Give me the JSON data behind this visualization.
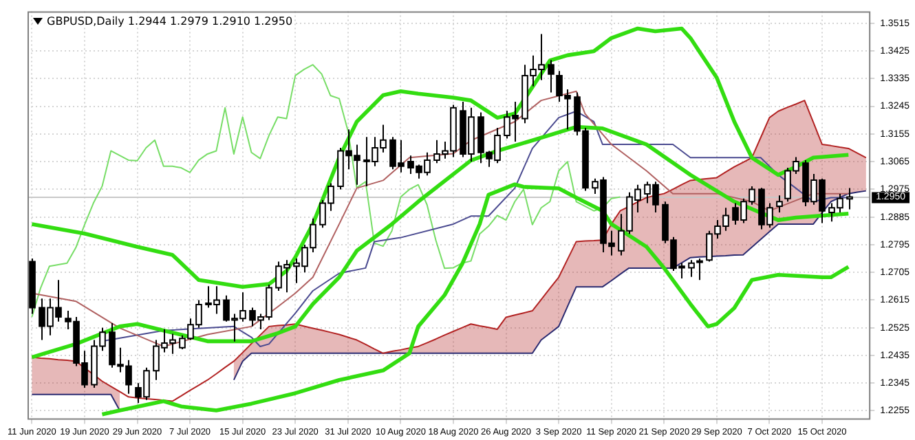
{
  "chart_data": {
    "type": "candlestick",
    "title": "GBPUSD,Daily 1.2944 1.2979 1.2910 1.2950",
    "categories": [
      "11 Jun 2020",
      null,
      null,
      null,
      null,
      null,
      "19 Jun 2020",
      null,
      null,
      null,
      null,
      null,
      "29 Jun 2020",
      null,
      null,
      null,
      null,
      null,
      "7 Jul 2020",
      null,
      null,
      null,
      null,
      null,
      "15 Jul 2020",
      null,
      null,
      null,
      null,
      null,
      "23 Jul 2020",
      null,
      null,
      null,
      null,
      null,
      "31 Jul 2020",
      null,
      null,
      null,
      null,
      null,
      "10 Aug 2020",
      null,
      null,
      null,
      null,
      null,
      "18 Aug 2020",
      null,
      null,
      null,
      null,
      null,
      "26 Aug 2020",
      null,
      null,
      null,
      null,
      null,
      "3 Sep 2020",
      null,
      null,
      null,
      null,
      null,
      "11 Sep 2020",
      null,
      null,
      null,
      null,
      null,
      "21 Sep 2020",
      null,
      null,
      null,
      null,
      null,
      "29 Sep 2020",
      null,
      null,
      null,
      null,
      null,
      "7 Oct 2020",
      null,
      null,
      null,
      null,
      null,
      "15 Oct 2020",
      null,
      null,
      null,
      null,
      null
    ],
    "ohlc": [
      [
        1.274,
        1.275,
        1.257,
        1.259
      ],
      [
        1.259,
        1.262,
        1.2485,
        1.253
      ],
      [
        1.253,
        1.262,
        1.25,
        1.259
      ],
      [
        1.259,
        1.268,
        1.2545,
        1.256
      ],
      [
        1.2555,
        1.258,
        1.252,
        1.2545
      ],
      [
        1.2545,
        1.256,
        1.24,
        1.241
      ],
      [
        1.241,
        1.245,
        1.233,
        1.234
      ],
      [
        1.234,
        1.2485,
        1.233,
        1.2465
      ],
      [
        1.2465,
        1.2525,
        1.245,
        1.251
      ],
      [
        1.251,
        1.254,
        1.2395,
        1.2405
      ],
      [
        1.2405,
        1.246,
        1.238,
        1.24
      ],
      [
        1.24,
        1.242,
        1.231,
        1.234
      ],
      [
        1.233,
        1.2345,
        1.228,
        1.23
      ],
      [
        1.23,
        1.2395,
        1.229,
        1.2385
      ],
      [
        1.2385,
        1.2485,
        1.2355,
        1.2465
      ],
      [
        1.246,
        1.252,
        1.2445,
        1.2475
      ],
      [
        1.2475,
        1.2505,
        1.244,
        1.2485
      ],
      [
        1.246,
        1.25,
        1.2455,
        1.249
      ],
      [
        1.249,
        1.2555,
        1.2485,
        1.2535
      ],
      [
        1.2535,
        1.2615,
        1.2525,
        1.26
      ],
      [
        1.26,
        1.266,
        1.259,
        1.2605
      ],
      [
        1.26,
        1.266,
        1.257,
        1.2615
      ],
      [
        1.2615,
        1.263,
        1.2545,
        1.255
      ],
      [
        1.255,
        1.257,
        1.248,
        1.2555
      ],
      [
        1.2555,
        1.264,
        1.2545,
        1.258
      ],
      [
        1.258,
        1.259,
        1.253,
        1.255
      ],
      [
        1.255,
        1.257,
        1.252,
        1.256
      ],
      [
        1.256,
        1.2665,
        1.255,
        1.2655
      ],
      [
        1.2655,
        1.274,
        1.2645,
        1.2725
      ],
      [
        1.272,
        1.2745,
        1.264,
        1.273
      ],
      [
        1.2725,
        1.275,
        1.267,
        1.2735
      ],
      [
        1.2725,
        1.2795,
        1.2705,
        1.2785
      ],
      [
        1.2785,
        1.288,
        1.277,
        1.286
      ],
      [
        1.286,
        1.294,
        1.285,
        1.293
      ],
      [
        1.293,
        1.2995,
        1.2905,
        1.2985
      ],
      [
        1.2985,
        1.311,
        1.2975,
        1.31
      ],
      [
        1.31,
        1.317,
        1.304,
        1.3085
      ],
      [
        1.3085,
        1.312,
        1.299,
        1.307
      ],
      [
        1.307,
        1.3145,
        1.2985,
        1.3068
      ],
      [
        1.3065,
        1.3145,
        1.305,
        1.311
      ],
      [
        1.311,
        1.3185,
        1.3095,
        1.3135
      ],
      [
        1.3135,
        1.3145,
        1.304,
        1.305
      ],
      [
        1.306,
        1.3135,
        1.303,
        1.305
      ],
      [
        1.3065,
        1.3085,
        1.3025,
        1.3045
      ],
      [
        1.305,
        1.3055,
        1.301,
        1.303
      ],
      [
        1.303,
        1.3095,
        1.302,
        1.307
      ],
      [
        1.307,
        1.3135,
        1.306,
        1.309
      ],
      [
        1.309,
        1.313,
        1.3075,
        1.31
      ],
      [
        1.31,
        1.325,
        1.308,
        1.324
      ],
      [
        1.323,
        1.326,
        1.308,
        1.309
      ],
      [
        1.309,
        1.324,
        1.3065,
        1.321
      ],
      [
        1.321,
        1.3225,
        1.306,
        1.3095
      ],
      [
        1.3095,
        1.31,
        1.3048,
        1.3075
      ],
      [
        1.307,
        1.3175,
        1.306,
        1.315
      ],
      [
        1.315,
        1.323,
        1.314,
        1.321
      ],
      [
        1.3215,
        1.326,
        1.313,
        1.3205
      ],
      [
        1.3205,
        1.338,
        1.319,
        1.3345
      ],
      [
        1.3345,
        1.341,
        1.331,
        1.3365
      ],
      [
        1.3365,
        1.348,
        1.333,
        1.338
      ],
      [
        1.338,
        1.3395,
        1.329,
        1.335
      ],
      [
        1.3345,
        1.336,
        1.326,
        1.328
      ],
      [
        1.328,
        1.33,
        1.317,
        1.327
      ],
      [
        1.3275,
        1.329,
        1.315,
        1.3165
      ],
      [
        1.3165,
        1.3175,
        1.297,
        1.298
      ],
      [
        1.298,
        1.301,
        1.296,
        1.3
      ],
      [
        1.3005,
        1.3015,
        1.277,
        1.28
      ],
      [
        1.28,
        1.284,
        1.276,
        1.279
      ],
      [
        1.2775,
        1.2895,
        1.276,
        1.284
      ],
      [
        1.284,
        1.2965,
        1.283,
        1.295
      ],
      [
        1.294,
        1.299,
        1.29,
        1.2975
      ],
      [
        1.296,
        1.3,
        1.293,
        1.299
      ],
      [
        1.299,
        1.3,
        1.29,
        1.2925
      ],
      [
        1.2925,
        1.2935,
        1.28,
        1.281
      ],
      [
        1.281,
        1.282,
        1.271,
        1.2718
      ],
      [
        1.2725,
        1.2735,
        1.2685,
        1.272
      ],
      [
        1.272,
        1.2745,
        1.269,
        1.2735
      ],
      [
        1.274,
        1.275,
        1.268,
        1.2742
      ],
      [
        1.2745,
        1.284,
        1.274,
        1.283
      ],
      [
        1.283,
        1.2875,
        1.2815,
        1.2855
      ],
      [
        1.2855,
        1.2915,
        1.284,
        1.289
      ],
      [
        1.2915,
        1.293,
        1.286,
        1.2875
      ],
      [
        1.2875,
        1.2945,
        1.2865,
        1.2935
      ],
      [
        1.2935,
        1.2985,
        1.2925,
        1.2975
      ],
      [
        1.2975,
        1.298,
        1.2845,
        1.286
      ],
      [
        1.286,
        1.293,
        1.285,
        1.2915
      ],
      [
        1.292,
        1.2955,
        1.29,
        1.2935
      ],
      [
        1.2945,
        1.3045,
        1.2935,
        1.3035
      ],
      [
        1.3035,
        1.308,
        1.3025,
        1.3065
      ],
      [
        1.306,
        1.307,
        1.292,
        1.2935
      ],
      [
        1.2935,
        1.3025,
        1.2925,
        1.3005
      ],
      [
        1.3005,
        1.301,
        1.2865,
        1.2905
      ],
      [
        1.29,
        1.293,
        1.287,
        1.2915
      ],
      [
        1.2915,
        1.296,
        1.29,
        1.2945
      ],
      [
        1.2944,
        1.2979,
        1.291,
        1.295
      ],
      null,
      null
    ],
    "series": [
      {
        "type": "line",
        "color": "#33dd11",
        "values": [
          1.2862,
          null,
          null,
          null,
          null,
          null,
          1.2831,
          null,
          null,
          null,
          null,
          null,
          1.2788,
          null,
          null,
          null,
          1.2762,
          null,
          null,
          1.268,
          null,
          null,
          null,
          null,
          1.2658,
          null,
          null,
          1.2667,
          null,
          1.271,
          1.2754,
          null,
          1.2862,
          null,
          null,
          1.3078,
          null,
          1.3195,
          null,
          null,
          1.3281,
          null,
          1.3294,
          null,
          1.3286,
          null,
          null,
          null,
          1.3273,
          null,
          1.3264,
          null,
          null,
          1.3208,
          null,
          1.3221,
          1.3264,
          null,
          null,
          1.3394,
          null,
          1.3411,
          null,
          null,
          1.3424,
          null,
          1.3467,
          null,
          null,
          1.3498,
          null,
          1.3489,
          null,
          null,
          1.3498,
          1.3467,
          null,
          null,
          1.3338,
          null,
          1.3195,
          null,
          1.3078,
          null,
          null,
          1.3022,
          null,
          1.3048,
          null,
          1.3078,
          null,
          null,
          null,
          1.3087,
          null,
          null
        ]
      },
      {
        "type": "line",
        "color": "#33dd11",
        "values": [
          1.2429,
          null,
          null,
          null,
          null,
          1.2472,
          null,
          null,
          null,
          null,
          1.2529,
          null,
          1.2537,
          null,
          null,
          1.2516,
          null,
          null,
          null,
          null,
          1.2481,
          null,
          null,
          null,
          null,
          1.2481,
          null,
          null,
          1.2507,
          null,
          1.2529,
          null,
          1.2602,
          null,
          null,
          1.2689,
          null,
          1.2775,
          null,
          null,
          null,
          1.2862,
          null,
          null,
          1.2935,
          null,
          null,
          null,
          null,
          null,
          1.3069,
          null,
          null,
          1.31,
          null,
          null,
          null,
          1.3134,
          null,
          null,
          null,
          null,
          1.3178,
          null,
          null,
          1.3173,
          null,
          null,
          null,
          null,
          1.3121,
          null,
          null,
          null,
          null,
          1.3022,
          null,
          null,
          null,
          null,
          1.2935,
          null,
          null,
          null,
          null,
          1.2875,
          null,
          1.2883,
          null,
          null,
          null,
          null,
          null,
          1.2896,
          null,
          null
        ]
      },
      {
        "type": "line",
        "color": "#33dd11",
        "values": [
          null,
          null,
          null,
          null,
          null,
          null,
          null,
          null,
          1.2243,
          null,
          1.2256,
          null,
          null,
          null,
          null,
          1.2286,
          null,
          1.2269,
          null,
          null,
          null,
          1.2256,
          null,
          null,
          null,
          1.2278,
          null,
          null,
          null,
          null,
          1.2312,
          null,
          null,
          null,
          null,
          1.2355,
          null,
          null,
          null,
          null,
          1.2386,
          null,
          null,
          1.2442,
          1.2529,
          null,
          null,
          1.2631,
          null,
          1.2732,
          null,
          1.2862,
          1.2957,
          null,
          null,
          1.2991,
          1.2983,
          null,
          null,
          null,
          1.2978,
          null,
          1.2948,
          null,
          null,
          1.2905,
          1.2862,
          null,
          null,
          null,
          1.2788,
          null,
          1.2719,
          null,
          null,
          1.2602,
          null,
          1.2529,
          1.2537,
          null,
          1.2589,
          null,
          1.268,
          null,
          null,
          1.2697,
          null,
          null,
          null,
          null,
          1.2689,
          1.2689,
          null,
          1.2723,
          null,
          null
        ]
      },
      {
        "type": "line",
        "color": "#b06060",
        "values": [
          1.2637,
          null,
          null,
          null,
          null,
          1.2611,
          null,
          null,
          null,
          null,
          1.2524,
          null,
          null,
          null,
          null,
          1.2464,
          null,
          null,
          null,
          null,
          1.2503,
          null,
          null,
          null,
          null,
          1.2529,
          null,
          null,
          1.2593,
          null,
          1.2637,
          null,
          1.2689,
          null,
          null,
          1.2862,
          null,
          1.2979,
          null,
          null,
          1.3004,
          null,
          null,
          1.3078,
          null,
          null,
          null,
          null,
          1.3091,
          null,
          1.3134,
          null,
          null,
          null,
          null,
          1.3195,
          null,
          null,
          1.3264,
          null,
          null,
          null,
          1.3294,
          1.3221,
          null,
          null,
          1.3121,
          null,
          null,
          null,
          1.3035,
          null,
          null,
          1.2961,
          null,
          null,
          null,
          null,
          1.2961,
          null,
          null,
          null,
          1.2935,
          null,
          1.2905,
          null,
          null,
          null,
          null,
          1.2961,
          null,
          null,
          null,
          1.2961,
          null,
          null
        ]
      },
      {
        "type": "line",
        "color": "#4a4a90",
        "values": [
          null,
          null,
          null,
          null,
          null,
          null,
          null,
          null,
          1.2481,
          null,
          null,
          null,
          null,
          null,
          null,
          1.2516,
          null,
          null,
          null,
          null,
          null,
          null,
          null,
          1.2529,
          null,
          1.2494,
          1.2464,
          1.2472,
          null,
          null,
          1.2572,
          null,
          1.2645,
          null,
          null,
          1.2702,
          null,
          null,
          1.2719,
          1.2805,
          null,
          null,
          1.2818,
          null,
          null,
          null,
          null,
          null,
          1.2862,
          null,
          1.2888,
          null,
          1.2888,
          null,
          null,
          1.2979,
          null,
          1.3108,
          null,
          null,
          1.3208,
          null,
          1.3229,
          null,
          1.3195,
          1.3121,
          null,
          null,
          null,
          null,
          null,
          null,
          null,
          1.3121,
          null,
          1.3078,
          null,
          null,
          null,
          null,
          null,
          null,
          null,
          1.3078,
          null,
          1.3022,
          null,
          1.2979,
          null,
          1.2935,
          null,
          1.2948,
          null,
          1.2948,
          null,
          null
        ]
      },
      {
        "type": "line",
        "color": "#77dd66",
        "values": [
          1.256,
          1.2655,
          1.2725,
          1.273,
          1.2735,
          1.2785,
          1.286,
          1.293,
          1.2985,
          1.31,
          1.3085,
          1.307,
          1.3068,
          1.311,
          1.3135,
          1.305,
          1.305,
          1.3045,
          1.303,
          1.307,
          1.309,
          1.31,
          1.324,
          1.309,
          1.321,
          1.3095,
          1.3075,
          1.315,
          1.321,
          1.3205,
          1.3345,
          1.3365,
          1.338,
          1.335,
          1.328,
          1.327,
          1.3165,
          1.298,
          1.3,
          1.28,
          1.279,
          1.284,
          1.295,
          1.2975,
          1.299,
          1.2925,
          1.281,
          1.2718,
          1.272,
          1.2735,
          1.2742,
          1.283,
          1.2855,
          1.289,
          1.2875,
          1.2935,
          1.2975,
          1.286,
          1.2915,
          1.2935,
          1.3035,
          1.3065,
          1.2935,
          null,
          1.2905,
          1.2915,
          1.2945,
          1.295,
          null,
          null,
          null,
          null,
          null,
          null,
          null,
          null,
          null,
          null,
          null,
          null,
          null,
          null,
          null,
          null,
          null,
          null,
          null,
          null,
          null,
          null,
          null,
          null,
          null,
          null,
          null,
          null
        ]
      },
      {
        "type": "line",
        "color": "#b22222",
        "values": [
          1.2429,
          1.2426,
          1.2424,
          1.2421,
          1.2419,
          1.2416,
          1.2394,
          1.2373,
          1.2351,
          1.2334,
          1.2317,
          1.23,
          1.2297,
          1.2294,
          1.2292,
          1.2289,
          1.2286,
          1.2303,
          1.2321,
          1.2338,
          1.2355,
          1.2375,
          1.2396,
          1.2416,
          1.2444,
          1.2473,
          1.2501,
          1.2529,
          1.2532,
          1.2534,
          1.2537,
          1.253,
          1.2523,
          1.2517,
          1.251,
          1.2503,
          1.2494,
          1.2485,
          1.2471,
          1.2456,
          1.2442,
          1.2448,
          1.2453,
          1.2459,
          1.2464,
          1.2476,
          1.2488,
          1.2501,
          1.2513,
          1.2525,
          1.2537,
          1.2531,
          1.2526,
          1.252,
          1.2559,
          1.2566,
          1.2573,
          1.258,
          1.2616,
          1.2653,
          1.2689,
          1.2747,
          1.2805,
          1.2807,
          1.2808,
          1.281,
          1.2862,
          1.2905,
          1.2919,
          1.2934,
          1.2948,
          1.2955,
          1.2961,
          1.2975,
          1.299,
          1.3004,
          1.3007,
          1.301,
          1.3013,
          1.3031,
          1.3048,
          1.3063,
          1.3078,
          1.3143,
          1.3208,
          1.3229,
          1.3241,
          1.3252,
          1.3264,
          1.3193,
          1.3121,
          1.3117,
          1.3112,
          1.3108,
          1.3093,
          1.3078
        ],
        "upper": [
          1.2429,
          1.2426,
          1.2424,
          1.2421,
          1.2419,
          1.2416,
          1.2394,
          1.2373,
          1.2351,
          1.2334,
          1.2317,
          null,
          null,
          null,
          null,
          null,
          null,
          null,
          null,
          null,
          null,
          null,
          null,
          1.2416,
          1.2444,
          1.2473,
          1.2501,
          1.2529,
          1.2532,
          1.2534,
          1.2537,
          1.253,
          1.2523,
          1.2517,
          1.251,
          1.2503,
          1.2494,
          1.2485,
          1.2471,
          1.2456,
          1.2442,
          1.2448,
          1.2453,
          1.2459,
          1.2464,
          1.2476,
          1.2488,
          1.2501,
          1.2513,
          1.2525,
          1.2537,
          1.2531,
          1.2526,
          1.252,
          1.2559,
          1.2566,
          1.2573,
          1.258,
          1.2616,
          1.2653,
          1.2689,
          1.2747,
          1.2805,
          1.2807,
          1.2808,
          1.281,
          1.2862,
          1.2905,
          1.2919,
          1.2934,
          1.2948,
          1.2955,
          1.2961,
          1.2975,
          1.299,
          1.3004,
          1.3007,
          1.301,
          1.3013,
          1.3031,
          1.3048,
          1.3063,
          1.3078,
          1.3143,
          1.3208,
          1.3229,
          1.3241,
          1.3252,
          1.3264,
          1.3193,
          1.3121,
          1.3117,
          1.3112,
          1.3108,
          1.3093,
          1.3078
        ],
        "lower": [
          1.2308,
          1.2308,
          1.2308,
          1.2308,
          1.2308,
          1.2308,
          1.2308,
          1.2308,
          1.2308,
          1.2308,
          1.2256,
          null,
          null,
          null,
          null,
          null,
          null,
          null,
          null,
          null,
          null,
          null,
          null,
          1.2355,
          1.2416,
          1.2442,
          1.2442,
          1.2442,
          1.2442,
          1.2442,
          1.2442,
          1.2442,
          1.2442,
          1.2442,
          1.2442,
          1.2442,
          1.2442,
          1.2442,
          1.2442,
          1.2442,
          1.2442,
          1.2442,
          1.2442,
          1.2442,
          1.2442,
          1.2442,
          1.2442,
          1.2442,
          1.2442,
          1.2442,
          1.2442,
          1.2442,
          1.2442,
          1.2442,
          1.2442,
          1.2442,
          1.2442,
          1.2442,
          1.2485,
          1.2507,
          1.2529,
          1.2594,
          1.2658,
          1.2658,
          1.2658,
          1.2658,
          1.2678,
          1.2699,
          1.2719,
          1.2719,
          1.2719,
          1.2719,
          1.2719,
          1.2719,
          1.2736,
          1.2753,
          1.2755,
          1.2756,
          1.2758,
          1.2759,
          1.2761,
          1.2762,
          1.2787,
          1.2812,
          1.2837,
          1.2862,
          1.2862,
          1.2862,
          1.2862,
          1.2862,
          1.2899,
          1.2935,
          1.2948,
          1.2961,
          1.2966,
          1.297
        ]
      },
      {
        "type": "line",
        "color": "#2a2a70",
        "values": [
          1.2308,
          1.2308,
          1.2308,
          1.2308,
          1.2308,
          1.2308,
          1.2308,
          1.2308,
          1.2308,
          1.2308,
          1.2256,
          null,
          null,
          null,
          null,
          null,
          null,
          null,
          null,
          null,
          null,
          null,
          null,
          1.2355,
          1.2416,
          1.2442,
          1.2442,
          1.2442,
          1.2442,
          1.2442,
          1.2442,
          1.2442,
          1.2442,
          1.2442,
          1.2442,
          1.2442,
          1.2442,
          1.2442,
          1.2442,
          1.2442,
          1.2442,
          1.2442,
          1.2442,
          1.2442,
          1.2442,
          1.2442,
          1.2442,
          1.2442,
          1.2442,
          1.2442,
          1.2442,
          1.2442,
          1.2442,
          1.2442,
          1.2442,
          1.2442,
          1.2442,
          1.2442,
          1.2485,
          1.2507,
          1.2529,
          1.2594,
          1.2658,
          1.2658,
          1.2658,
          1.2658,
          1.2678,
          1.2699,
          1.2719,
          1.2719,
          1.2719,
          1.2719,
          1.2719,
          1.2719,
          1.2736,
          1.2753,
          1.2755,
          1.2756,
          1.2758,
          1.2759,
          1.2761,
          1.2762,
          1.2787,
          1.2812,
          1.2837,
          1.2862,
          1.2862,
          1.2862,
          1.2862,
          1.2862,
          1.2899,
          1.2935,
          1.2948,
          1.2961,
          1.2966,
          1.297
        ]
      }
    ],
    "ylim": [
      1.2226,
      1.3554
    ],
    "yticks": [
      1.3515,
      1.3425,
      1.3335,
      1.3245,
      1.3155,
      1.3065,
      1.2975,
      1.2885,
      1.2795,
      1.2705,
      1.2615,
      1.2525,
      1.2435,
      1.2345,
      1.2255
    ],
    "ref_lines": [
      {
        "axis": "y",
        "value": 1.295,
        "label": "1.2950",
        "color": "#c8c8c8"
      }
    ],
    "grid": true
  }
}
